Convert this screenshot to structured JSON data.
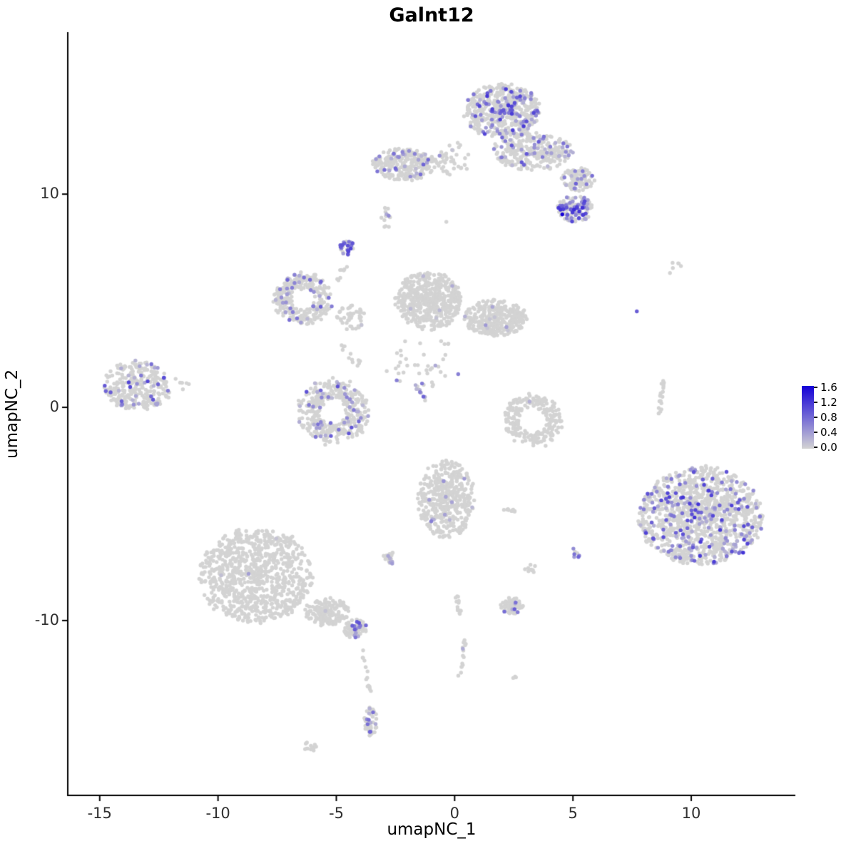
{
  "title": "Galnt12",
  "axes": {
    "x": {
      "label": "umapNC_1",
      "ticks": [
        -15,
        -10,
        -5,
        0,
        5,
        10
      ]
    },
    "y": {
      "label": "umapNC_2",
      "ticks": [
        10,
        0,
        -10
      ]
    }
  },
  "legend": {
    "labels": [
      "1.6",
      "1.2",
      "0.8",
      "0.4",
      "0.0"
    ]
  },
  "colors": {
    "axis": "#000000",
    "tick_text": "#303030",
    "background": "#ffffff",
    "base_point": "#d3d3d3"
  },
  "render": {
    "seed": 11,
    "point_radius": 2.7
  },
  "chart_data": {
    "type": "scatter",
    "title": "Galnt12",
    "xlabel": "umapNC_1",
    "ylabel": "umapNC_2",
    "xlim": [
      -16.35,
      14.4
    ],
    "ylim": [
      -18.2,
      17.6
    ],
    "grid": false,
    "legend_position": "right",
    "color_scale": {
      "min": 0.0,
      "max": 1.6,
      "low": "#d3d3d3",
      "high": "#1400d7"
    },
    "clusters": [
      {
        "name": "top-main",
        "shape": "blob",
        "cx": 2.0,
        "cy": 13.9,
        "rx": 1.6,
        "ry": 1.3,
        "n": 520,
        "frac": 0.22,
        "vmax": 1.2
      },
      {
        "name": "top-sub",
        "shape": "blob",
        "cx": 3.3,
        "cy": 12.0,
        "rx": 1.7,
        "ry": 0.9,
        "n": 290,
        "frac": 0.12,
        "vmax": 1.0
      },
      {
        "name": "top-right-arm",
        "shape": "blob",
        "cx": 5.2,
        "cy": 10.7,
        "rx": 0.7,
        "ry": 0.55,
        "n": 90,
        "frac": 0.15,
        "vmax": 1.0
      },
      {
        "name": "top-right-hot",
        "shape": "blob",
        "cx": 5.1,
        "cy": 9.3,
        "rx": 0.75,
        "ry": 0.6,
        "n": 130,
        "frac": 0.45,
        "vmax": 1.3
      },
      {
        "name": "top-left",
        "shape": "blob",
        "cx": -2.1,
        "cy": 11.4,
        "rx": 1.35,
        "ry": 0.75,
        "n": 280,
        "frac": 0.1,
        "vmax": 0.9
      },
      {
        "name": "top-conn",
        "shape": "blob",
        "cx": -0.1,
        "cy": 11.7,
        "rx": 0.9,
        "ry": 0.8,
        "n": 45,
        "frac": 0.07,
        "vmax": 0.6
      },
      {
        "name": "small-pair-upper",
        "shape": "blob",
        "cx": -2.9,
        "cy": 8.9,
        "rx": 0.25,
        "ry": 0.5,
        "n": 14,
        "frac": 0.2,
        "vmax": 0.8
      },
      {
        "name": "purple-blob-small",
        "shape": "blob",
        "cx": -4.55,
        "cy": 7.5,
        "rx": 0.3,
        "ry": 0.35,
        "n": 35,
        "frac": 0.6,
        "vmax": 1.1
      },
      {
        "name": "blob-trail",
        "shape": "line",
        "x1": -4.45,
        "y1": 6.9,
        "x2": -5.05,
        "y2": 5.95,
        "jitter": 0.1,
        "n": 8,
        "frac": 0,
        "vmax": 0
      },
      {
        "name": "ring-cluster",
        "shape": "ring",
        "inner": 0.45,
        "cx": -6.4,
        "cy": 5.1,
        "rx": 1.2,
        "ry": 1.2,
        "n": 310,
        "frac": 0.12,
        "vmax": 1.0
      },
      {
        "name": "ring-bridge",
        "shape": "line",
        "x1": -5.0,
        "y1": 3.3,
        "x2": -4.0,
        "y2": 1.9,
        "jitter": 0.12,
        "n": 12,
        "frac": 0.05,
        "vmax": 0.6
      },
      {
        "name": "mid-main",
        "shape": "blob",
        "cx": -1.1,
        "cy": 5.0,
        "rx": 1.4,
        "ry": 1.35,
        "n": 500,
        "frac": 0.02,
        "vmax": 0.6
      },
      {
        "name": "mid-right",
        "shape": "blob",
        "cx": 1.7,
        "cy": 4.2,
        "rx": 1.35,
        "ry": 0.85,
        "n": 330,
        "frac": 0.015,
        "vmax": 0.5
      },
      {
        "name": "mid-bridge",
        "shape": "blob",
        "cx": -4.4,
        "cy": 4.2,
        "rx": 0.6,
        "ry": 0.6,
        "n": 45,
        "frac": 0.04,
        "vmax": 0.6
      },
      {
        "name": "mid-sparse",
        "shape": "blob",
        "cx": -1.3,
        "cy": 2.1,
        "rx": 1.7,
        "ry": 1.2,
        "n": 40,
        "frac": 0.06,
        "vmax": 0.7
      },
      {
        "name": "purple-strand",
        "shape": "line",
        "x1": -1.65,
        "y1": 1.05,
        "x2": -1.25,
        "y2": 0.35,
        "jitter": 0.06,
        "n": 12,
        "frac": 0.55,
        "vmax": 1.0
      },
      {
        "name": "c-cluster",
        "shape": "ring",
        "inner": 0.4,
        "cx": -5.1,
        "cy": -0.2,
        "rx": 1.5,
        "ry": 1.5,
        "n": 380,
        "frac": 0.13,
        "vmax": 1.0
      },
      {
        "name": "left-cluster",
        "shape": "blob",
        "cx": -13.4,
        "cy": 1.0,
        "rx": 1.4,
        "ry": 1.2,
        "n": 300,
        "frac": 0.11,
        "vmax": 1.1
      },
      {
        "name": "left-lone-dots",
        "shape": "blob",
        "cx": -11.5,
        "cy": 1.2,
        "rx": 0.35,
        "ry": 0.45,
        "n": 6,
        "frac": 0,
        "vmax": 0
      },
      {
        "name": "crescent",
        "shape": "ring",
        "inner": 0.5,
        "cx": 3.3,
        "cy": -0.6,
        "rx": 1.25,
        "ry": 1.2,
        "n": 240,
        "frac": 0.008,
        "vmax": 0.4
      },
      {
        "name": "right-trail",
        "shape": "line",
        "x1": 8.8,
        "y1": 1.3,
        "x2": 8.65,
        "y2": -0.3,
        "jitter": 0.08,
        "n": 20,
        "frac": 0.02,
        "vmax": 0.5
      },
      {
        "name": "top-right-dots",
        "shape": "blob",
        "cx": 9.35,
        "cy": 6.6,
        "rx": 0.3,
        "ry": 0.3,
        "n": 5,
        "frac": 0,
        "vmax": 0
      },
      {
        "name": "bottom-mid",
        "shape": "blob",
        "cx": -0.35,
        "cy": -4.3,
        "rx": 1.2,
        "ry": 1.85,
        "n": 430,
        "frac": 0.03,
        "vmax": 0.8
      },
      {
        "name": "pair-line",
        "shape": "line",
        "x1": 2.05,
        "y1": -4.8,
        "x2": 2.85,
        "y2": -4.9,
        "jitter": 0.05,
        "n": 10,
        "frac": 0,
        "vmax": 0
      },
      {
        "name": "small-left-pair",
        "shape": "blob",
        "cx": -2.75,
        "cy": -7.05,
        "rx": 0.3,
        "ry": 0.3,
        "n": 22,
        "frac": 0.13,
        "vmax": 0.9
      },
      {
        "name": "purple-pair",
        "shape": "blob",
        "cx": 5.1,
        "cy": -6.9,
        "rx": 0.2,
        "ry": 0.3,
        "n": 7,
        "frac": 0.6,
        "vmax": 1.0
      },
      {
        "name": "small-mid-dots",
        "shape": "blob",
        "cx": 3.25,
        "cy": -7.6,
        "rx": 0.3,
        "ry": 0.22,
        "n": 9,
        "frac": 0.05,
        "vmax": 0.5
      },
      {
        "name": "bottom-left-main",
        "shape": "blob",
        "cx": -8.4,
        "cy": -7.9,
        "rx": 2.4,
        "ry": 2.2,
        "n": 880,
        "frac": 0.004,
        "vmax": 0.5
      },
      {
        "name": "bottom-left-ext",
        "shape": "blob",
        "cx": -5.4,
        "cy": -9.6,
        "rx": 0.95,
        "ry": 0.65,
        "n": 180,
        "frac": 0.01,
        "vmax": 0.5
      },
      {
        "name": "tail-cluster",
        "shape": "blob",
        "cx": -4.2,
        "cy": -10.4,
        "rx": 0.5,
        "ry": 0.45,
        "n": 90,
        "frac": 0.18,
        "vmax": 1.0
      },
      {
        "name": "tail-strand",
        "shape": "line",
        "x1": -3.95,
        "y1": -11.2,
        "x2": -3.6,
        "y2": -13.3,
        "jitter": 0.08,
        "n": 14,
        "frac": 0.1,
        "vmax": 0.8
      },
      {
        "name": "bottom-blob",
        "shape": "blob",
        "cx": -3.55,
        "cy": -14.7,
        "rx": 0.28,
        "ry": 0.7,
        "n": 50,
        "frac": 0.3,
        "vmax": 1.0
      },
      {
        "name": "bottom-small-dots",
        "shape": "blob",
        "cx": -6.1,
        "cy": -15.9,
        "rx": 0.33,
        "ry": 0.22,
        "n": 12,
        "frac": 0,
        "vmax": 0
      },
      {
        "name": "mid-strand-upper",
        "shape": "line",
        "x1": 0.05,
        "y1": -8.6,
        "x2": 0.25,
        "y2": -9.9,
        "jitter": 0.07,
        "n": 13,
        "frac": 0,
        "vmax": 0
      },
      {
        "name": "mid-strand-lower",
        "shape": "line",
        "x1": 0.45,
        "y1": -10.9,
        "x2": 0.2,
        "y2": -12.8,
        "jitter": 0.07,
        "n": 16,
        "frac": 0.06,
        "vmax": 0.7
      },
      {
        "name": "small-cluster-bm",
        "shape": "blob",
        "cx": 2.4,
        "cy": -9.3,
        "rx": 0.5,
        "ry": 0.38,
        "n": 65,
        "frac": 0.06,
        "vmax": 0.9
      },
      {
        "name": "tiny-dot",
        "shape": "blob",
        "cx": 2.55,
        "cy": -12.6,
        "rx": 0.12,
        "ry": 0.12,
        "n": 3,
        "frac": 0,
        "vmax": 0
      },
      {
        "name": "bottom-right-main",
        "shape": "blob",
        "cx": 10.4,
        "cy": -5.1,
        "rx": 2.6,
        "ry": 2.3,
        "n": 1150,
        "frac": 0.16,
        "vmax": 1.2
      }
    ],
    "extra_points": [
      {
        "x": 4.55,
        "y": 9.05,
        "v": 1.6
      },
      {
        "x": 7.7,
        "y": 4.5,
        "v": 0.9
      },
      {
        "x": -0.35,
        "y": 8.7,
        "v": 0
      },
      {
        "x": 9.1,
        "y": 6.3,
        "v": 0
      }
    ]
  }
}
